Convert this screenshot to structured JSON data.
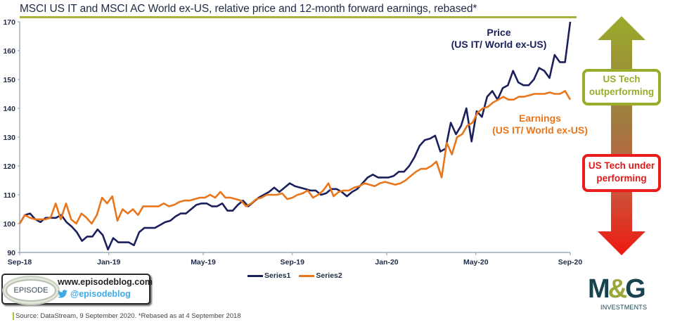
{
  "title": "MSCI US IT and MSCI AC World ex-US, relative price and 12-month forward earnings, rebased*",
  "annotations": {
    "price_line1": "Price",
    "price_line2": "(US IT/ World ex-US)",
    "earnings_line1": "Earnings",
    "earnings_line2": "(US IT/ World ex-US)"
  },
  "arrow_labels": {
    "outperforming_line1": "US Tech",
    "outperforming_line2": "outperforming",
    "underperforming_line1": "US Tech under",
    "underperforming_line2": "performing"
  },
  "colors": {
    "series1": "#1b1f5c",
    "series2": "#e8761c",
    "accent_olive": "#9aab2c",
    "accent_red": "#ea1c1c",
    "mg_teal": "#17434f"
  },
  "episode_box": {
    "logo_text": "EPISODE",
    "url": "www.episodeblog.com",
    "handle": "@episodeblog"
  },
  "source": "Source: DataStream, 9 September 2020. *Rebased as at 4 September 2018",
  "mg_logo": {
    "letters_m": "M",
    "letters_amp": "&",
    "letters_g": "G",
    "sub": "INVESTMENTS"
  },
  "chart_data": {
    "type": "line",
    "title": "MSCI US IT and MSCI AC World ex-US, relative price and 12-month forward earnings, rebased*",
    "xlabel": "",
    "ylabel": "",
    "ylim": [
      90,
      170
    ],
    "yticks": [
      90,
      100,
      110,
      120,
      130,
      140,
      150,
      160,
      170
    ],
    "xticks": [
      "Sep-18",
      "Jan-19",
      "May-19",
      "Sep-19",
      "Jan-20",
      "May-20",
      "Sep-20"
    ],
    "xtick_positions_weeks": [
      0,
      17,
      35,
      52,
      70,
      87,
      105
    ],
    "grid": false,
    "legend_position": "bottom-center",
    "x_unit": "weeks since 4 Sep 2018",
    "series": [
      {
        "name": "Series1",
        "label": "Price (US IT/ World ex-US)",
        "values": [
          100,
          103,
          103.5,
          101.5,
          100.5,
          102,
          102,
          102,
          103,
          100.5,
          99,
          97,
          94,
          95.5,
          95.5,
          98,
          96,
          91,
          95,
          93.5,
          93.5,
          93.5,
          92.5,
          97,
          98.5,
          98.5,
          98.5,
          99.5,
          100.5,
          101,
          102.5,
          103.5,
          103.5,
          105,
          106.5,
          107,
          107,
          106,
          106,
          107,
          104.5,
          104.5,
          106.5,
          108,
          106,
          107.5,
          109,
          110,
          111,
          112.5,
          111,
          112.5,
          114,
          113,
          112.5,
          112,
          111.5,
          111.5,
          110,
          110.5,
          112,
          112,
          111,
          109.5,
          111,
          112,
          114,
          116,
          117,
          116,
          116,
          116,
          116.5,
          118,
          118,
          120,
          123,
          127,
          129,
          129.5,
          130.5,
          125,
          126,
          135,
          131,
          134,
          140,
          128.5,
          139,
          137,
          144,
          146,
          143,
          147,
          148,
          153,
          149,
          148,
          148,
          150,
          154,
          153,
          150.5,
          158.5,
          156,
          156,
          170
        ],
        "color": "#1b1f5c"
      },
      {
        "name": "Series2",
        "label": "Earnings (US IT/ World ex-US)",
        "values": [
          100,
          103,
          102,
          101.5,
          101.5,
          101.5,
          102,
          107,
          101.5,
          107,
          101.5,
          100,
          103.5,
          102,
          100,
          103,
          109,
          107,
          109.5,
          101,
          105,
          103.5,
          105,
          103,
          106,
          106,
          106,
          106,
          107,
          106,
          106.5,
          107.5,
          108,
          108,
          108.5,
          109,
          109,
          110,
          109,
          111,
          109,
          109,
          108.5,
          108,
          106,
          107,
          108.5,
          109,
          110,
          110,
          110,
          110.5,
          108.5,
          109,
          110,
          110.5,
          111.5,
          109,
          110,
          111.5,
          114,
          109.5,
          111,
          111.5,
          111.5,
          112.5,
          113,
          114,
          113.5,
          113,
          114,
          114.5,
          114,
          113.5,
          114,
          115,
          116.5,
          118,
          119,
          119,
          120,
          121.5,
          116,
          128,
          124,
          130,
          131,
          134,
          135,
          138.5,
          140,
          140.5,
          142,
          143,
          144,
          143,
          143,
          144,
          144,
          144.5,
          145,
          145,
          145,
          145.5,
          145,
          145,
          146,
          143
        ],
        "color": "#e8761c"
      }
    ]
  },
  "legend": [
    {
      "label": "Series1",
      "color": "#1b1f5c"
    },
    {
      "label": "Series2",
      "color": "#e8761c"
    }
  ]
}
